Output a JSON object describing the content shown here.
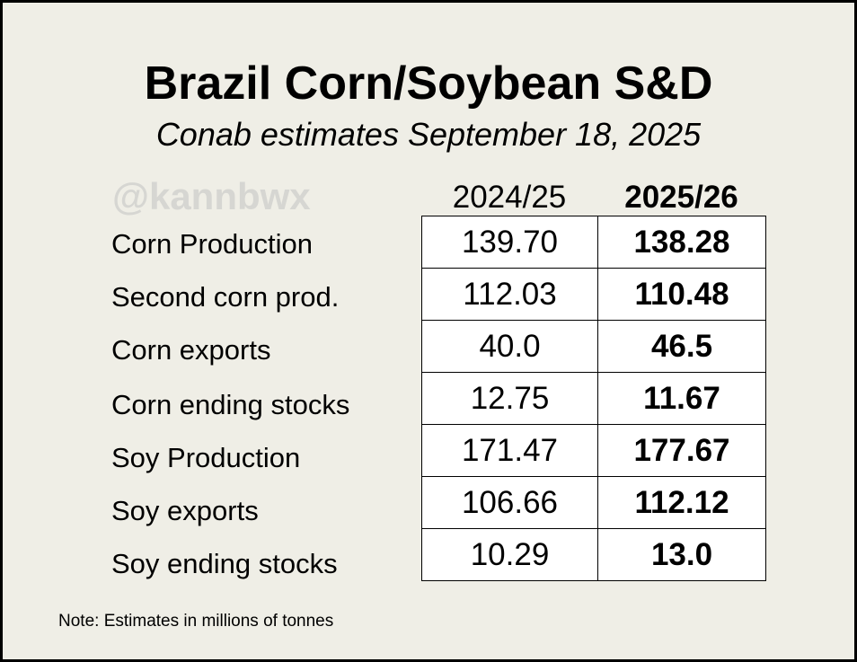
{
  "title": "Brazil Corn/Soybean S&D",
  "subtitle": "Conab estimates September 18, 2025",
  "watermark": "@kannbwx",
  "note": "Note: Estimates in millions of tonnes",
  "chart_data": {
    "type": "table",
    "title": "Brazil Corn/Soybean S&D",
    "subtitle": "Conab estimates September 18, 2025",
    "columns": [
      "2024/25",
      "2025/26"
    ],
    "rows": [
      {
        "label": "Corn Production",
        "values": [
          "139.70",
          "138.28"
        ]
      },
      {
        "label": "Second corn prod.",
        "values": [
          "112.03",
          "110.48"
        ]
      },
      {
        "label": "Corn exports",
        "values": [
          "40.0",
          "46.5"
        ]
      },
      {
        "label": "Corn ending stocks",
        "values": [
          "12.75",
          "11.67"
        ]
      },
      {
        "label": "Soy Production",
        "values": [
          "171.47",
          "177.67"
        ]
      },
      {
        "label": "Soy exports",
        "values": [
          "106.66",
          "112.12"
        ]
      },
      {
        "label": "Soy ending stocks",
        "values": [
          "10.29",
          "13.0"
        ]
      }
    ],
    "note": "Note: Estimates in millions of tonnes"
  }
}
